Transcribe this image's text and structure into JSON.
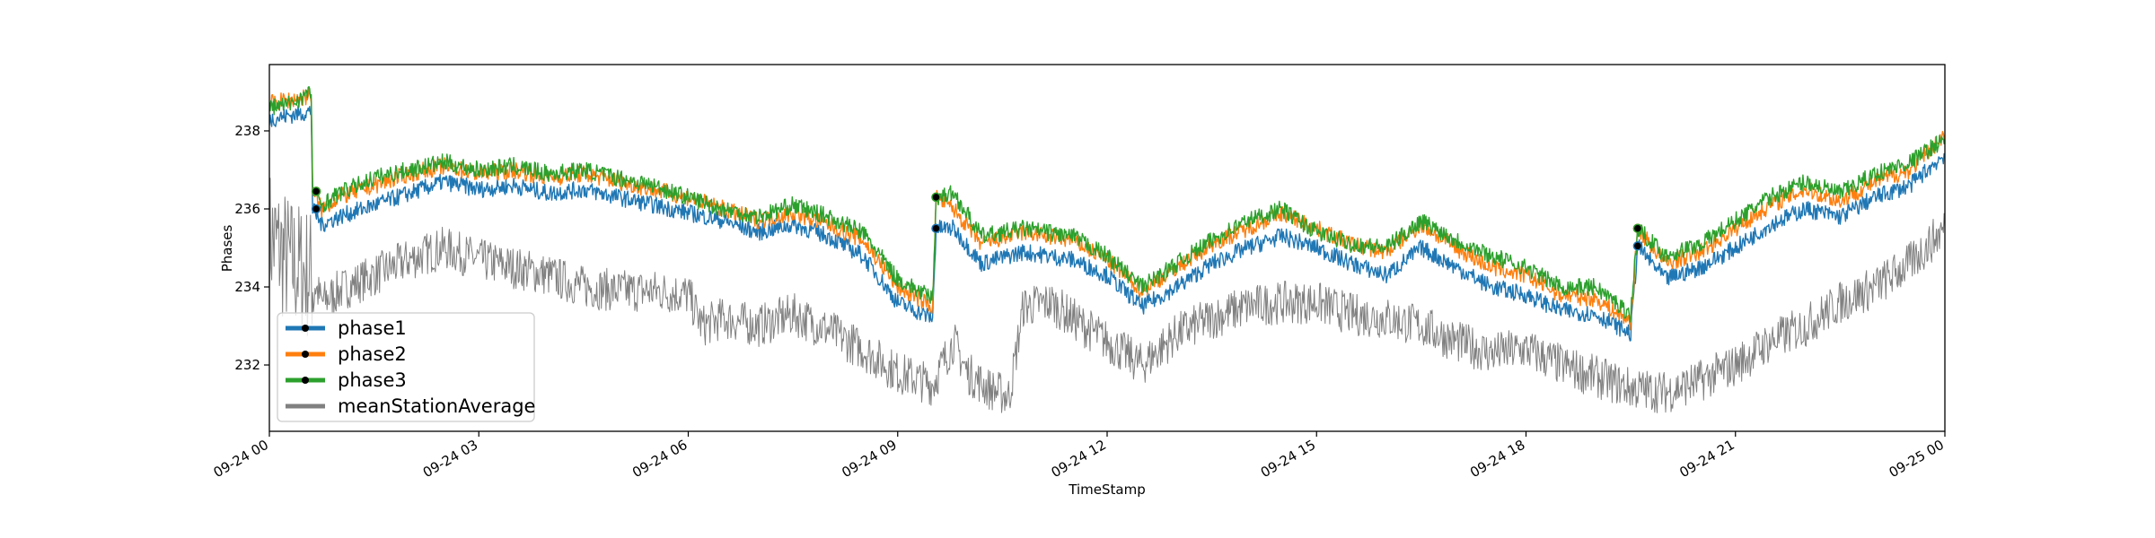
{
  "chart_data": {
    "type": "line",
    "xlabel": "TimeStamp",
    "ylabel": "Phases",
    "x_ticks": [
      "09-24 00",
      "09-24 03",
      "09-24 06",
      "09-24 09",
      "09-24 12",
      "09-24 15",
      "09-24 18",
      "09-24 21",
      "09-25 00"
    ],
    "y_ticks": [
      232,
      234,
      236,
      238
    ],
    "xlim_hours": [
      0,
      24
    ],
    "ylim": [
      230.3,
      239.7
    ],
    "grid": false,
    "legend_position": "lower-left",
    "series": [
      {
        "name": "phase1",
        "color": "#1f77b4",
        "marker_points": [
          [
            0.67,
            236.0
          ],
          [
            9.55,
            235.5
          ],
          [
            19.6,
            235.05
          ]
        ],
        "points": [
          [
            0,
            238.3
          ],
          [
            0.3,
            238.4
          ],
          [
            0.6,
            238.5
          ],
          [
            0.62,
            236.0
          ],
          [
            0.75,
            235.6
          ],
          [
            1,
            235.8
          ],
          [
            1.5,
            236.1
          ],
          [
            2,
            236.4
          ],
          [
            2.5,
            236.7
          ],
          [
            3,
            236.5
          ],
          [
            3.5,
            236.6
          ],
          [
            4,
            236.4
          ],
          [
            4.5,
            236.5
          ],
          [
            5,
            236.3
          ],
          [
            5.5,
            236.1
          ],
          [
            6,
            235.9
          ],
          [
            6.5,
            235.7
          ],
          [
            7,
            235.4
          ],
          [
            7.5,
            235.6
          ],
          [
            8,
            235.3
          ],
          [
            8.5,
            234.8
          ],
          [
            9,
            233.6
          ],
          [
            9.5,
            233.2
          ],
          [
            9.55,
            235.5
          ],
          [
            9.8,
            235.5
          ],
          [
            10.2,
            234.6
          ],
          [
            10.8,
            234.9
          ],
          [
            11.5,
            234.7
          ],
          [
            12,
            234.3
          ],
          [
            12.5,
            233.5
          ],
          [
            13,
            234.0
          ],
          [
            13.5,
            234.6
          ],
          [
            14,
            235.0
          ],
          [
            14.5,
            235.3
          ],
          [
            15,
            235.0
          ],
          [
            15.5,
            234.6
          ],
          [
            16,
            234.3
          ],
          [
            16.5,
            235.0
          ],
          [
            17,
            234.5
          ],
          [
            17.5,
            234.0
          ],
          [
            18,
            233.8
          ],
          [
            18.5,
            233.4
          ],
          [
            19,
            233.3
          ],
          [
            19.5,
            232.8
          ],
          [
            19.6,
            235.05
          ],
          [
            20,
            234.2
          ],
          [
            20.5,
            234.5
          ],
          [
            21,
            235.0
          ],
          [
            21.5,
            235.6
          ],
          [
            22,
            236.0
          ],
          [
            22.5,
            235.8
          ],
          [
            23,
            236.3
          ],
          [
            23.5,
            236.6
          ],
          [
            24,
            237.4
          ]
        ]
      },
      {
        "name": "phase2",
        "color": "#ff7f0e",
        "marker_points": [
          [
            0.67,
            236.45
          ],
          [
            9.55,
            236.3
          ],
          [
            19.6,
            235.5
          ]
        ],
        "points": [
          [
            0,
            238.7
          ],
          [
            0.3,
            238.8
          ],
          [
            0.6,
            238.9
          ],
          [
            0.62,
            236.4
          ],
          [
            0.75,
            236.0
          ],
          [
            1,
            236.3
          ],
          [
            1.5,
            236.6
          ],
          [
            2,
            236.9
          ],
          [
            2.5,
            237.1
          ],
          [
            3,
            236.9
          ],
          [
            3.5,
            237.0
          ],
          [
            4,
            236.8
          ],
          [
            4.5,
            236.9
          ],
          [
            5,
            236.7
          ],
          [
            5.5,
            236.5
          ],
          [
            6,
            236.3
          ],
          [
            6.5,
            236.0
          ],
          [
            7,
            235.7
          ],
          [
            7.5,
            235.9
          ],
          [
            8,
            235.6
          ],
          [
            8.5,
            235.2
          ],
          [
            9,
            234.0
          ],
          [
            9.5,
            233.5
          ],
          [
            9.55,
            236.3
          ],
          [
            9.8,
            236.0
          ],
          [
            10.2,
            235.1
          ],
          [
            10.8,
            235.4
          ],
          [
            11.5,
            235.2
          ],
          [
            12,
            234.7
          ],
          [
            12.5,
            233.9
          ],
          [
            13,
            234.5
          ],
          [
            13.5,
            235.1
          ],
          [
            14,
            235.5
          ],
          [
            14.5,
            235.9
          ],
          [
            15,
            235.5
          ],
          [
            15.5,
            235.1
          ],
          [
            16,
            234.9
          ],
          [
            16.5,
            235.6
          ],
          [
            17,
            235.0
          ],
          [
            17.5,
            234.5
          ],
          [
            18,
            234.3
          ],
          [
            18.5,
            233.8
          ],
          [
            19,
            233.7
          ],
          [
            19.5,
            233.1
          ],
          [
            19.6,
            235.5
          ],
          [
            20,
            234.6
          ],
          [
            20.5,
            234.9
          ],
          [
            21,
            235.5
          ],
          [
            21.5,
            236.1
          ],
          [
            22,
            236.5
          ],
          [
            22.5,
            236.2
          ],
          [
            23,
            236.7
          ],
          [
            23.5,
            237.0
          ],
          [
            24,
            237.9
          ]
        ]
      },
      {
        "name": "phase3",
        "color": "#2ca02c",
        "marker_points": [
          [
            0.67,
            236.45
          ],
          [
            9.55,
            236.3
          ],
          [
            19.6,
            235.5
          ]
        ],
        "points": [
          [
            0,
            238.6
          ],
          [
            0.3,
            238.7
          ],
          [
            0.6,
            239.0
          ],
          [
            0.62,
            236.5
          ],
          [
            0.75,
            236.1
          ],
          [
            1,
            236.4
          ],
          [
            1.5,
            236.8
          ],
          [
            2,
            237.0
          ],
          [
            2.5,
            237.2
          ],
          [
            3,
            237.0
          ],
          [
            3.5,
            237.1
          ],
          [
            4,
            236.9
          ],
          [
            4.5,
            237.0
          ],
          [
            5,
            236.8
          ],
          [
            5.5,
            236.6
          ],
          [
            6,
            236.3
          ],
          [
            6.5,
            236.0
          ],
          [
            7,
            235.8
          ],
          [
            7.5,
            236.1
          ],
          [
            8,
            235.8
          ],
          [
            8.5,
            235.4
          ],
          [
            9,
            234.2
          ],
          [
            9.5,
            233.7
          ],
          [
            9.55,
            236.3
          ],
          [
            9.8,
            236.4
          ],
          [
            10.2,
            235.3
          ],
          [
            10.8,
            235.5
          ],
          [
            11.5,
            235.3
          ],
          [
            12,
            234.8
          ],
          [
            12.5,
            234.0
          ],
          [
            13,
            234.6
          ],
          [
            13.5,
            235.2
          ],
          [
            14,
            235.7
          ],
          [
            14.5,
            236.0
          ],
          [
            15,
            235.4
          ],
          [
            15.5,
            235.1
          ],
          [
            16,
            235.0
          ],
          [
            16.5,
            235.7
          ],
          [
            17,
            235.2
          ],
          [
            17.5,
            234.8
          ],
          [
            18,
            234.5
          ],
          [
            18.5,
            234.0
          ],
          [
            19,
            234.0
          ],
          [
            19.5,
            233.3
          ],
          [
            19.6,
            235.5
          ],
          [
            20,
            234.8
          ],
          [
            20.5,
            235.1
          ],
          [
            21,
            235.7
          ],
          [
            21.5,
            236.3
          ],
          [
            22,
            236.7
          ],
          [
            22.5,
            236.4
          ],
          [
            23,
            236.9
          ],
          [
            23.5,
            237.2
          ],
          [
            24,
            237.8
          ]
        ]
      },
      {
        "name": "meanStationAverage",
        "color": "#808080",
        "points": [
          [
            0,
            235.3
          ],
          [
            0.3,
            234.6
          ],
          [
            0.6,
            234.3
          ],
          [
            0.75,
            233.6
          ],
          [
            1,
            233.9
          ],
          [
            1.5,
            234.3
          ],
          [
            2,
            234.7
          ],
          [
            2.5,
            235.0
          ],
          [
            3,
            234.7
          ],
          [
            3.5,
            234.5
          ],
          [
            4,
            234.3
          ],
          [
            4.5,
            234.0
          ],
          [
            5,
            233.9
          ],
          [
            5.5,
            233.9
          ],
          [
            6,
            233.8
          ],
          [
            6.2,
            233.0
          ],
          [
            6.5,
            233.2
          ],
          [
            7,
            233.0
          ],
          [
            7.5,
            233.3
          ],
          [
            8,
            232.9
          ],
          [
            8.5,
            232.4
          ],
          [
            9,
            231.8
          ],
          [
            9.5,
            231.5
          ],
          [
            9.8,
            232.6
          ],
          [
            10,
            231.8
          ],
          [
            10.3,
            231.4
          ],
          [
            10.6,
            231.2
          ],
          [
            10.8,
            233.5
          ],
          [
            11.2,
            233.6
          ],
          [
            11.5,
            233.2
          ],
          [
            12,
            232.6
          ],
          [
            12.5,
            232.0
          ],
          [
            13,
            232.8
          ],
          [
            13.5,
            233.2
          ],
          [
            14,
            233.5
          ],
          [
            14.5,
            233.6
          ],
          [
            15,
            233.6
          ],
          [
            15.5,
            233.3
          ],
          [
            16,
            233.2
          ],
          [
            16.5,
            233.0
          ],
          [
            17,
            232.6
          ],
          [
            17.5,
            232.3
          ],
          [
            18,
            232.4
          ],
          [
            18.5,
            232.0
          ],
          [
            19,
            231.7
          ],
          [
            19.5,
            231.4
          ],
          [
            20,
            231.3
          ],
          [
            20.5,
            231.6
          ],
          [
            21,
            232.0
          ],
          [
            21.5,
            232.6
          ],
          [
            22,
            233.0
          ],
          [
            22.5,
            233.6
          ],
          [
            23,
            234.0
          ],
          [
            23.5,
            234.6
          ],
          [
            24,
            235.5
          ]
        ]
      }
    ]
  }
}
